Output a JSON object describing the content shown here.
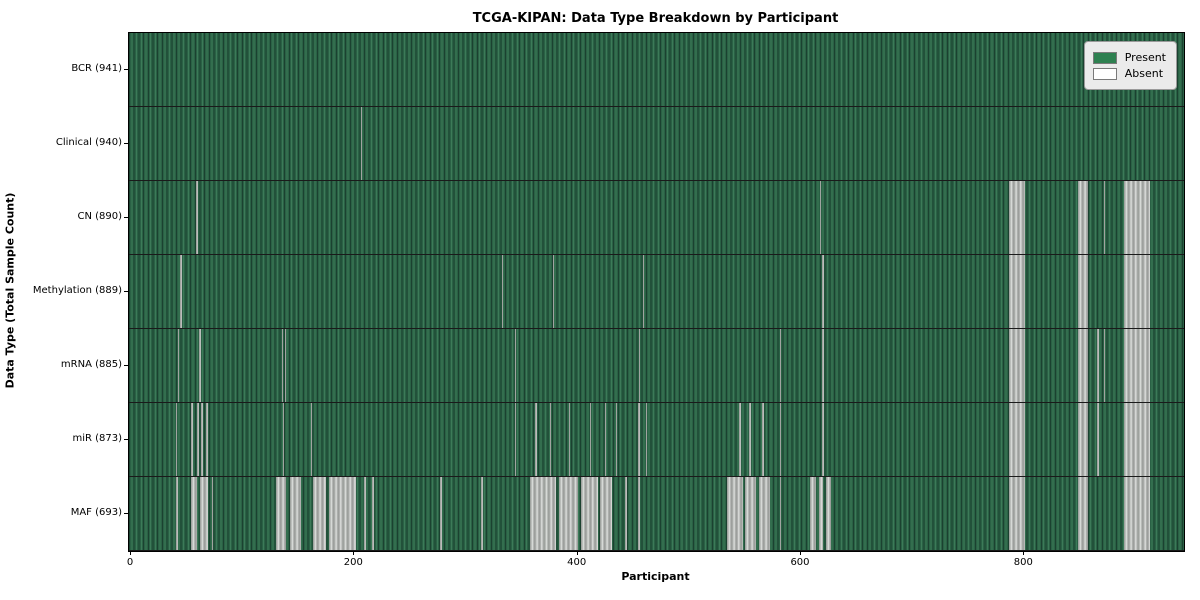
{
  "figure": {
    "title": "TCGA-KIPAN: Data Type Breakdown by Participant",
    "xlabel": "Participant",
    "ylabel": "Data Type (Total Sample Count)"
  },
  "legend": {
    "items": [
      {
        "label": "Present",
        "color": "#2e8050"
      },
      {
        "label": "Absent",
        "color": "#ffffff"
      }
    ]
  },
  "colors": {
    "present_base": "#2a6145",
    "present_dark": "#1b4130",
    "present_light": "#3c7a58",
    "absent_base": "#bfc2bf",
    "absent_dark": "#969996",
    "absent_light": "#e2e4e2",
    "row_divider": "#1a1a1a",
    "plot_border": "#000000",
    "background": "#ffffff"
  },
  "x_axis": {
    "ticks": [
      0,
      200,
      400,
      600,
      800
    ],
    "data_max": 943
  },
  "chart_data": {
    "type": "heatmap",
    "title": "TCGA-KIPAN: Data Type Breakdown by Participant",
    "xlabel": "Participant",
    "ylabel": "Data Type (Total Sample Count)",
    "legend_entries": [
      "Present",
      "Absent"
    ],
    "x_range": [
      0,
      941
    ],
    "x_ticks": [
      0,
      200,
      400,
      600,
      800
    ],
    "encoding": "green stripe = data present for participant; white/gray stripe = data absent",
    "rows": [
      {
        "label": "BCR (941)",
        "data_type": "BCR",
        "total_samples": 941,
        "absent_ranges": []
      },
      {
        "label": "Clinical (940)",
        "data_type": "Clinical",
        "total_samples": 940,
        "absent_ranges": [
          [
            207,
            207
          ]
        ]
      },
      {
        "label": "CN (890)",
        "data_type": "CN",
        "total_samples": 890,
        "absent_ranges": [
          [
            59,
            60
          ],
          [
            618,
            618
          ],
          [
            787,
            801
          ],
          [
            849,
            857
          ],
          [
            872,
            872
          ],
          [
            890,
            913
          ]
        ]
      },
      {
        "label": "Methylation (889)",
        "data_type": "Methylation",
        "total_samples": 889,
        "absent_ranges": [
          [
            45,
            46
          ],
          [
            333,
            333
          ],
          [
            379,
            379
          ],
          [
            459,
            459
          ],
          [
            620,
            620
          ],
          [
            787,
            801
          ],
          [
            849,
            857
          ],
          [
            890,
            913
          ]
        ]
      },
      {
        "label": "mRNA (885)",
        "data_type": "mRNA",
        "total_samples": 885,
        "absent_ranges": [
          [
            43,
            43
          ],
          [
            62,
            63
          ],
          [
            136,
            136
          ],
          [
            139,
            139
          ],
          [
            345,
            345
          ],
          [
            456,
            456
          ],
          [
            582,
            582
          ],
          [
            620,
            620
          ],
          [
            787,
            801
          ],
          [
            849,
            857
          ],
          [
            866,
            867
          ],
          [
            872,
            872
          ],
          [
            890,
            913
          ]
        ]
      },
      {
        "label": "miR (873)",
        "data_type": "miR",
        "total_samples": 873,
        "absent_ranges": [
          [
            41,
            41
          ],
          [
            55,
            56
          ],
          [
            60,
            61
          ],
          [
            64,
            65
          ],
          [
            68,
            69
          ],
          [
            137,
            137
          ],
          [
            162,
            162
          ],
          [
            345,
            345
          ],
          [
            363,
            363
          ],
          [
            376,
            376
          ],
          [
            393,
            393
          ],
          [
            412,
            412
          ],
          [
            425,
            425
          ],
          [
            435,
            435
          ],
          [
            455,
            456
          ],
          [
            462,
            462
          ],
          [
            545,
            546
          ],
          [
            554,
            555
          ],
          [
            566,
            567
          ],
          [
            582,
            582
          ],
          [
            620,
            621
          ],
          [
            787,
            801
          ],
          [
            849,
            857
          ],
          [
            866,
            867
          ],
          [
            890,
            913
          ]
        ]
      },
      {
        "label": "MAF (693)",
        "data_type": "MAF",
        "total_samples": 693,
        "absent_ranges": [
          [
            41,
            42
          ],
          [
            55,
            59
          ],
          [
            63,
            69
          ],
          [
            73,
            73
          ],
          [
            131,
            139
          ],
          [
            143,
            152
          ],
          [
            164,
            175
          ],
          [
            178,
            202
          ],
          [
            210,
            211
          ],
          [
            217,
            217
          ],
          [
            278,
            279
          ],
          [
            314,
            315
          ],
          [
            358,
            381
          ],
          [
            384,
            400
          ],
          [
            404,
            418
          ],
          [
            421,
            431
          ],
          [
            443,
            444
          ],
          [
            455,
            456
          ],
          [
            535,
            548
          ],
          [
            551,
            560
          ],
          [
            563,
            572
          ],
          [
            582,
            582
          ],
          [
            609,
            614
          ],
          [
            617,
            620
          ],
          [
            623,
            627
          ],
          [
            787,
            801
          ],
          [
            849,
            857
          ],
          [
            890,
            913
          ]
        ]
      }
    ]
  }
}
